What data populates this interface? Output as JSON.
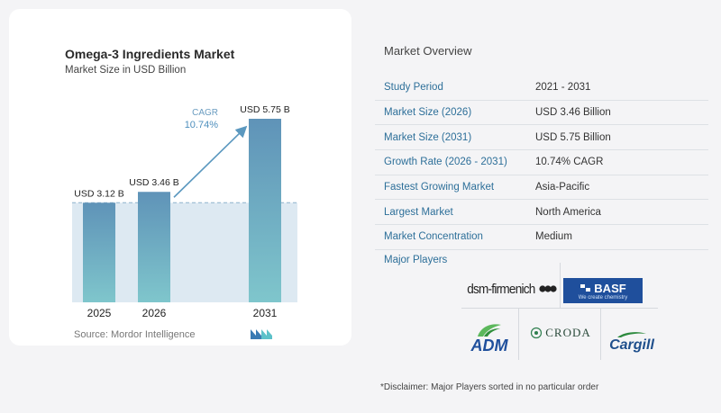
{
  "chart": {
    "title": "Omega-3 Ingredients Market",
    "subtitle": "Market Size in USD Billion",
    "cagr_label": "CAGR",
    "cagr_value": "10.74%",
    "source": "Source:  Mordor Intelligence"
  },
  "chart_data": {
    "type": "bar",
    "title": "Omega-3 Ingredients Market",
    "subtitle": "Market Size in USD Billion",
    "categories": [
      "2025",
      "2026",
      "2031"
    ],
    "values": [
      3.12,
      3.46,
      5.75
    ],
    "data_labels": [
      "USD 3.12 B",
      "USD 3.46 B",
      "USD 5.75 B"
    ],
    "ylim": [
      0,
      5.75
    ],
    "annotation": {
      "label": "CAGR",
      "value": "10.74%"
    },
    "colors": {
      "bar_top": "#5f93b8",
      "bar_bottom": "#7fc6cc",
      "shade": "#dde9f2",
      "arrow": "#5b98bf"
    }
  },
  "overview": {
    "title": "Market Overview",
    "rows": [
      {
        "label": "Study Period",
        "value": "2021 - 2031"
      },
      {
        "label": "Market Size (2026)",
        "value": "USD 3.46 Billion"
      },
      {
        "label": "Market Size (2031)",
        "value": "USD 5.75 Billion"
      },
      {
        "label": "Growth Rate (2026 - 2031)",
        "value": "10.74% CAGR"
      },
      {
        "label": "Fastest Growing Market",
        "value": "Asia-Pacific"
      },
      {
        "label": "Largest Market",
        "value": "North America"
      },
      {
        "label": "Market Concentration",
        "value": "Medium"
      }
    ]
  },
  "players": {
    "title": "Major Players",
    "logos": {
      "dsm": "dsm-firmenich",
      "basf": "BASF",
      "basf_tagline": "We create chemistry",
      "adm": "ADM",
      "croda": "CRODA",
      "cargill": "Cargill"
    }
  },
  "disclaimer": "*Disclaimer: Major Players sorted in no particular order"
}
